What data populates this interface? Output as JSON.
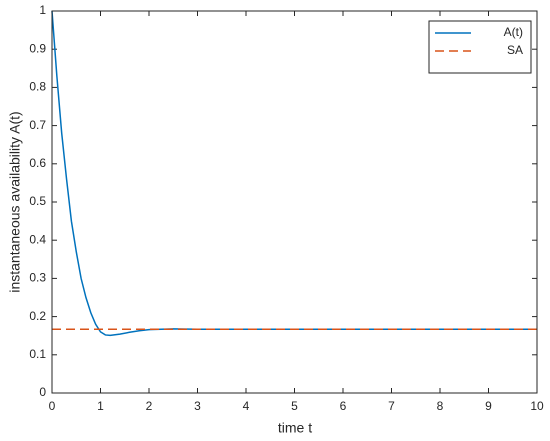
{
  "chart_data": {
    "type": "line",
    "xlabel": "time t",
    "ylabel": "instantaneous availability A(t)",
    "x": [
      0,
      0.1,
      0.2,
      0.3,
      0.4,
      0.5,
      0.6,
      0.7,
      0.8,
      0.9,
      1.0,
      1.1,
      1.2,
      1.4,
      1.6,
      1.8,
      2,
      2.5,
      3,
      4,
      5,
      6,
      7,
      8,
      9,
      10
    ],
    "series": [
      {
        "name": "A(t)",
        "color": "#0072bd",
        "dashed": false,
        "values": [
          1,
          0.83,
          0.68,
          0.56,
          0.45,
          0.37,
          0.3,
          0.25,
          0.21,
          0.18,
          0.16,
          0.152,
          0.151,
          0.154,
          0.159,
          0.163,
          0.166,
          0.168,
          0.167,
          0.167,
          0.167,
          0.167,
          0.167,
          0.167,
          0.167,
          0.167
        ]
      },
      {
        "name": "SA",
        "color": "#d95319",
        "dashed": true,
        "values": [
          0.167,
          0.167,
          0.167,
          0.167,
          0.167,
          0.167,
          0.167,
          0.167,
          0.167,
          0.167,
          0.167,
          0.167,
          0.167,
          0.167,
          0.167,
          0.167,
          0.167,
          0.167,
          0.167,
          0.167,
          0.167,
          0.167,
          0.167,
          0.167,
          0.167,
          0.167
        ]
      }
    ],
    "xlim": [
      0,
      10
    ],
    "xticks": [
      0,
      1,
      2,
      3,
      4,
      5,
      6,
      7,
      8,
      9,
      10
    ],
    "ylim": [
      0,
      1
    ],
    "yticks": [
      0,
      0.1,
      0.2,
      0.3,
      0.4,
      0.5,
      0.6,
      0.7,
      0.8,
      0.9,
      1
    ],
    "legend": "top-right"
  }
}
